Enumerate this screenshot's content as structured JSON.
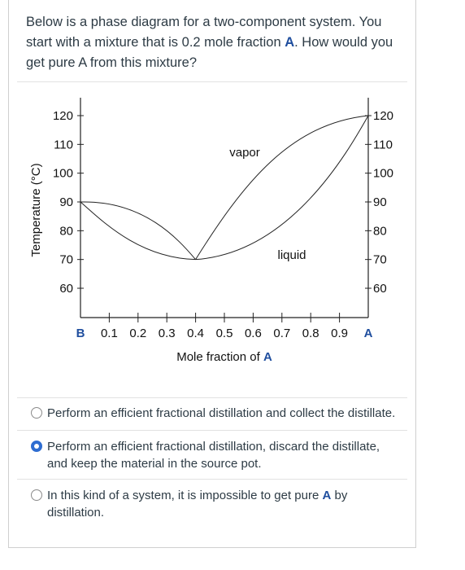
{
  "question": {
    "part1": "Below is a phase diagram for a two-component system.  You start with a mixture that is 0.2 mole fraction ",
    "bold": "A",
    "part2": ".  How would you get pure A from this mixture?"
  },
  "chart_data": {
    "type": "line",
    "ylabel": "Temperature (°C)",
    "xlabel_prefix": "Mole fraction of ",
    "xlabel_bold": "A",
    "left_end_label": "B",
    "right_end_label": "A",
    "x_ticks": [
      "0.1",
      "0.2",
      "0.3",
      "0.4",
      "0.5",
      "0.6",
      "0.7",
      "0.8",
      "0.9"
    ],
    "y_ticks": [
      "120",
      "110",
      "100",
      "90",
      "80",
      "70",
      "60"
    ],
    "ylim": [
      60,
      120
    ],
    "region_labels": {
      "vapor": "vapor",
      "liquid": "liquid"
    },
    "azeotrope": {
      "x": 0.4,
      "y": 70
    },
    "left_boiling_point": {
      "x": 0.0,
      "y": 90
    },
    "right_boiling_point": {
      "x": 1.0,
      "y": 120
    }
  },
  "options": [
    {
      "text": "Perform an efficient fractional distillation and collect the distillate.",
      "selected": false
    },
    {
      "text": "Perform an efficient fractional distillation, discard the distillate, and keep the material in the source pot.",
      "selected": true
    },
    {
      "text_part1": "In this kind of a system, it is impossible to get pure ",
      "text_bold": "A",
      "text_part2": " by distillation.",
      "selected": false
    }
  ],
  "colors": {
    "accent": "#1f4e9e",
    "selected_radio": "#2e6dd1"
  }
}
